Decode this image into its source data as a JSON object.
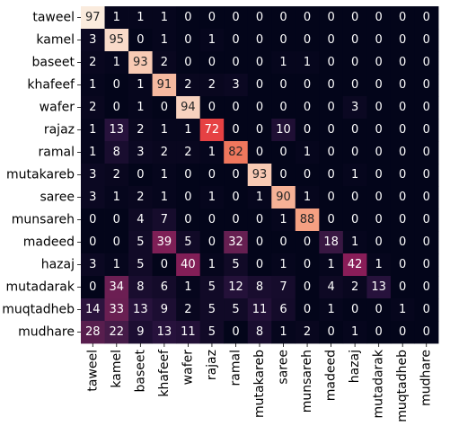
{
  "chart_data": {
    "type": "heatmap",
    "rows": [
      "taweel",
      "kamel",
      "baseet",
      "khafeef",
      "wafer",
      "rajaz",
      "ramal",
      "mutakareb",
      "saree",
      "munsareh",
      "madeed",
      "hazaj",
      "mutadarak",
      "muqtadheb",
      "mudhare"
    ],
    "cols": [
      "taweel",
      "kamel",
      "baseet",
      "khafeef",
      "wafer",
      "rajaz",
      "ramal",
      "mutakareb",
      "saree",
      "munsareh",
      "madeed",
      "hazaj",
      "mutadarak",
      "muqtadheb",
      "mudhare"
    ],
    "values": [
      [
        97,
        1,
        1,
        1,
        0,
        0,
        0,
        0,
        0,
        0,
        0,
        0,
        0,
        0,
        0
      ],
      [
        3,
        95,
        0,
        1,
        0,
        1,
        0,
        0,
        0,
        0,
        0,
        0,
        0,
        0,
        0
      ],
      [
        2,
        1,
        93,
        2,
        0,
        0,
        0,
        0,
        1,
        1,
        0,
        0,
        0,
        0,
        0
      ],
      [
        1,
        0,
        1,
        91,
        2,
        2,
        3,
        0,
        0,
        0,
        0,
        0,
        0,
        0,
        0
      ],
      [
        2,
        0,
        1,
        0,
        94,
        0,
        0,
        0,
        0,
        0,
        0,
        3,
        0,
        0,
        0
      ],
      [
        1,
        13,
        2,
        1,
        1,
        72,
        0,
        0,
        10,
        0,
        0,
        0,
        0,
        0,
        0
      ],
      [
        1,
        8,
        3,
        2,
        2,
        1,
        82,
        0,
        0,
        1,
        0,
        0,
        0,
        0,
        0
      ],
      [
        3,
        2,
        0,
        1,
        0,
        0,
        0,
        93,
        0,
        0,
        0,
        1,
        0,
        0,
        0
      ],
      [
        3,
        1,
        2,
        1,
        0,
        1,
        0,
        1,
        90,
        1,
        0,
        0,
        0,
        0,
        0
      ],
      [
        0,
        0,
        4,
        7,
        0,
        0,
        0,
        0,
        1,
        88,
        0,
        0,
        0,
        0,
        0
      ],
      [
        0,
        0,
        5,
        39,
        5,
        0,
        32,
        0,
        0,
        0,
        18,
        1,
        0,
        0,
        0
      ],
      [
        3,
        1,
        5,
        0,
        40,
        1,
        5,
        0,
        1,
        0,
        1,
        42,
        1,
        0,
        0
      ],
      [
        0,
        34,
        8,
        6,
        1,
        5,
        12,
        8,
        7,
        0,
        4,
        2,
        13,
        0,
        0
      ],
      [
        14,
        33,
        13,
        9,
        2,
        5,
        5,
        11,
        6,
        0,
        1,
        0,
        0,
        1,
        0
      ],
      [
        28,
        22,
        9,
        13,
        11,
        5,
        0,
        8,
        1,
        2,
        0,
        1,
        0,
        0,
        0
      ]
    ],
    "title": "",
    "xlabel": "",
    "ylabel": "",
    "vmin": 0,
    "vmax": 97,
    "colormap": "rocket"
  }
}
